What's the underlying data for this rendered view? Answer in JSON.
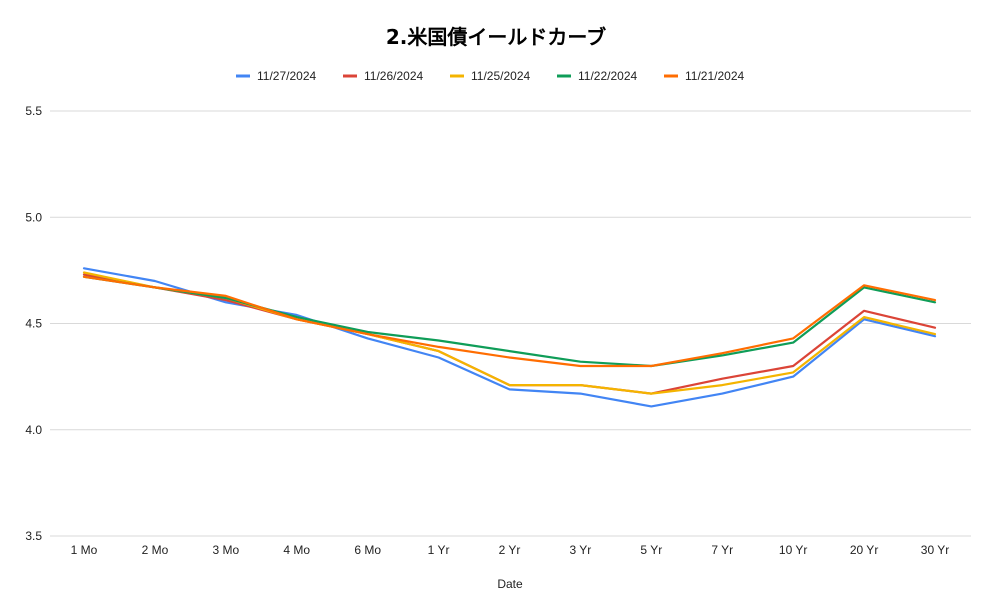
{
  "chart_data": {
    "type": "line",
    "title": "2.米国債イールドカーブ",
    "xlabel": "Date",
    "ylabel": "",
    "ylim": [
      3.5,
      5.5
    ],
    "yticks": [
      "3.5",
      "4.0",
      "4.5",
      "5.0",
      "5.5"
    ],
    "grid": true,
    "legend_position": "top",
    "categories": [
      "1 Mo",
      "2 Mo",
      "3 Mo",
      "4 Mo",
      "6 Mo",
      "1 Yr",
      "2 Yr",
      "3 Yr",
      "5 Yr",
      "7 Yr",
      "10 Yr",
      "20 Yr",
      "30 Yr"
    ],
    "series": [
      {
        "name": "11/27/2024",
        "color": "#4285f4",
        "values": [
          4.76,
          4.7,
          4.6,
          4.54,
          4.43,
          4.34,
          4.19,
          4.17,
          4.11,
          4.17,
          4.25,
          4.52,
          4.44
        ]
      },
      {
        "name": "11/26/2024",
        "color": "#db4437",
        "values": [
          4.73,
          4.67,
          4.61,
          4.52,
          4.45,
          4.37,
          4.21,
          4.21,
          4.17,
          4.24,
          4.3,
          4.56,
          4.48
        ]
      },
      {
        "name": "11/25/2024",
        "color": "#f4b400",
        "values": [
          4.74,
          4.67,
          4.62,
          4.52,
          4.45,
          4.37,
          4.21,
          4.21,
          4.17,
          4.21,
          4.27,
          4.53,
          4.45
        ]
      },
      {
        "name": "11/22/2024",
        "color": "#0f9d58",
        "values": [
          4.72,
          4.67,
          4.62,
          4.53,
          4.46,
          4.42,
          4.37,
          4.32,
          4.3,
          4.35,
          4.41,
          4.67,
          4.6
        ]
      },
      {
        "name": "11/21/2024",
        "color": "#ff6d01",
        "values": [
          4.72,
          4.67,
          4.63,
          4.52,
          4.45,
          4.39,
          4.34,
          4.3,
          4.3,
          4.36,
          4.43,
          4.68,
          4.61
        ]
      }
    ]
  }
}
